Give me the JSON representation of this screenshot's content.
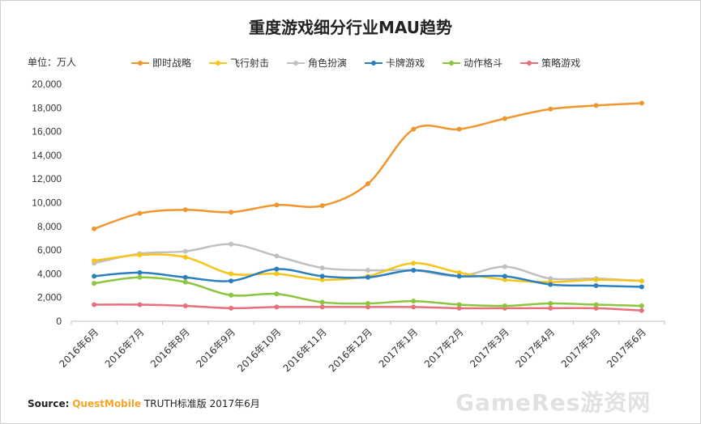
{
  "chart_data": {
    "type": "line",
    "title": "重度游戏细分行业MAU趋势",
    "unit_label": "单位：万人",
    "categories": [
      "2016年6月",
      "2016年7月",
      "2016年8月",
      "2016年9月",
      "2016年10月",
      "2016年11月",
      "2016年12月",
      "2017年1月",
      "2017年2月",
      "2017年3月",
      "2017年4月",
      "2017年5月",
      "2017年6月"
    ],
    "y_ticks": [
      "20,000",
      "18,000",
      "16,000",
      "14,000",
      "12,000",
      "10,000",
      "8,000",
      "6,000",
      "4,000",
      "2,000",
      "0"
    ],
    "ylim": [
      0,
      20000
    ],
    "legend_position": "top",
    "grid": false,
    "series": [
      {
        "name": "即时战略",
        "color": "#f0962e",
        "values": [
          7800,
          9100,
          9400,
          9200,
          9800,
          9750,
          11600,
          16200,
          16200,
          17100,
          17900,
          18200,
          18400
        ]
      },
      {
        "name": "飞行射击",
        "color": "#f5c518",
        "values": [
          5100,
          5600,
          5400,
          4000,
          4000,
          3500,
          3800,
          4900,
          4100,
          3500,
          3300,
          3500,
          3400
        ]
      },
      {
        "name": "角色扮演",
        "color": "#c0c0c0",
        "values": [
          4900,
          5700,
          5900,
          6500,
          5500,
          4500,
          4300,
          4300,
          3800,
          4600,
          3600,
          3600,
          3400
        ]
      },
      {
        "name": "卡牌游戏",
        "color": "#2b7fbf",
        "values": [
          3800,
          4100,
          3700,
          3400,
          4400,
          3800,
          3700,
          4300,
          3800,
          3800,
          3100,
          3000,
          2900
        ]
      },
      {
        "name": "动作格斗",
        "color": "#8cc63e",
        "values": [
          3200,
          3700,
          3300,
          2200,
          2300,
          1600,
          1500,
          1700,
          1400,
          1300,
          1500,
          1400,
          1300
        ]
      },
      {
        "name": "策略游戏",
        "color": "#e8707a",
        "values": [
          1400,
          1400,
          1300,
          1100,
          1200,
          1200,
          1200,
          1200,
          1100,
          1100,
          1100,
          1100,
          900
        ]
      }
    ]
  },
  "source": {
    "label": "Source:",
    "brand": "QuestMobile",
    "rest": "TRUTH标准版 2017年6月"
  },
  "watermark": "GameRes游资网"
}
